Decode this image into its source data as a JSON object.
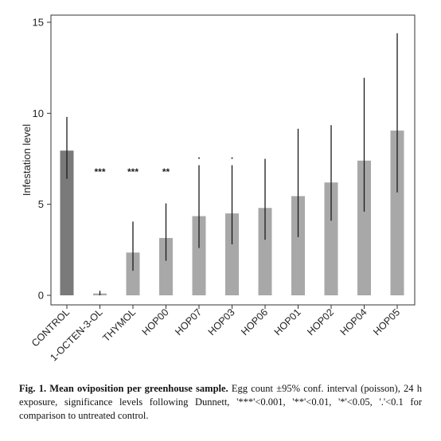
{
  "chart_data": {
    "type": "bar",
    "title": "",
    "xlabel": "",
    "ylabel": "Infestation level",
    "ylim": [
      0,
      15
    ],
    "yticks": [
      0,
      5,
      10,
      15
    ],
    "categories": [
      "CONTROL",
      "1-OCTEN-3-OL",
      "THYMOL",
      "HOP00",
      "HOP07",
      "HOP03",
      "HOP06",
      "HOP01",
      "HOP02",
      "HOP04",
      "HOP05"
    ],
    "values": [
      7.95,
      0.1,
      2.35,
      3.15,
      4.35,
      4.5,
      4.8,
      5.45,
      6.2,
      7.4,
      9.05
    ],
    "ci_low": [
      6.4,
      0.0,
      1.35,
      1.9,
      2.6,
      2.8,
      3.05,
      3.2,
      4.1,
      4.6,
      5.65
    ],
    "ci_high": [
      9.8,
      0.25,
      4.05,
      5.05,
      7.15,
      7.15,
      7.5,
      9.15,
      9.35,
      11.95,
      14.4
    ],
    "significance": [
      "",
      "***",
      "***",
      "**",
      ".",
      ".",
      "",
      "",
      "",
      "",
      ""
    ],
    "colors": {
      "control": "#7a7a7a",
      "treatment": "#a8a8a8",
      "errorbar": "#1a1a1a"
    }
  },
  "caption": {
    "label": "Fig. 1.",
    "heading": "Mean oviposition per greenhouse sample.",
    "text": "Egg count ±95% conf. interval (poisson), 24 h exposure, significance levels following Dunnett, '***'<0.001, '**'<0.01, '*'<0.05, '.'<0.1 for comparison to untreated control."
  }
}
